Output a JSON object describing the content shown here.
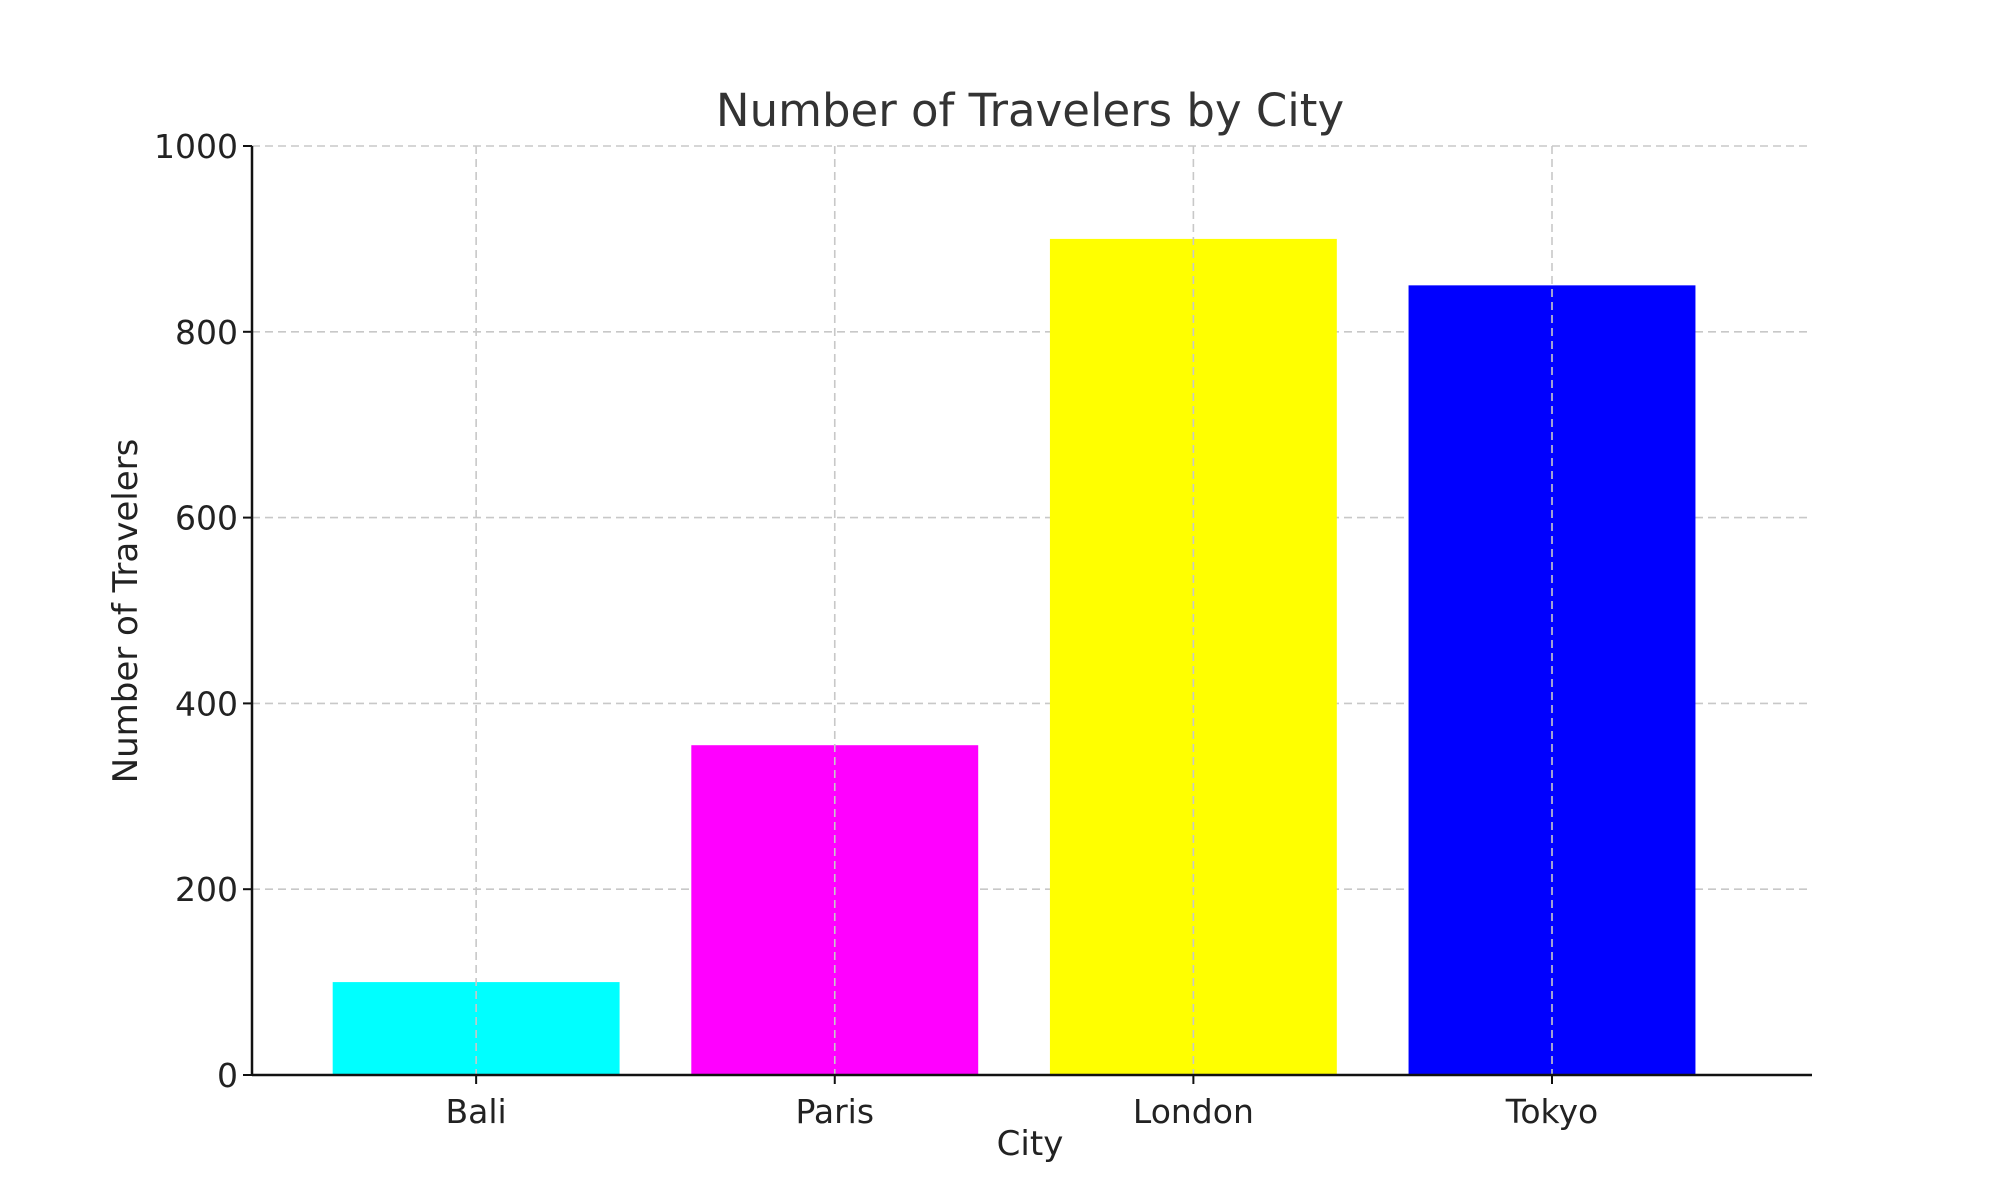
{
  "chart_data": {
    "type": "bar",
    "title": "Number of Travelers by City",
    "xlabel": "City",
    "ylabel": "Number of Travelers",
    "categories": [
      "Bali",
      "Paris",
      "London",
      "Tokyo"
    ],
    "values": [
      100,
      355,
      900,
      850
    ],
    "colors": [
      "#00ffff",
      "#ff00ff",
      "#ffff00",
      "#0000ff"
    ],
    "ylim": [
      0,
      1000
    ],
    "yticks": [
      0,
      200,
      400,
      600,
      800,
      1000
    ],
    "ytick_labels": [
      "0",
      "200",
      "400",
      "600",
      "800",
      "1000"
    ],
    "grid": true
  }
}
